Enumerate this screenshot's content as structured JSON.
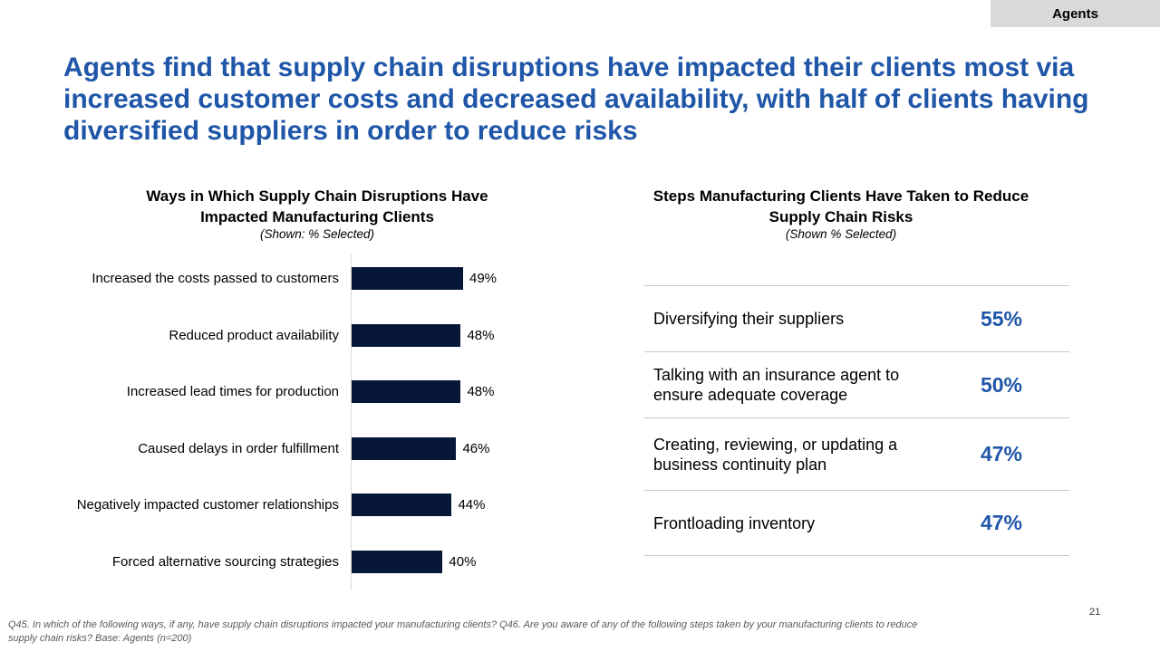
{
  "tag": "Agents",
  "title": "Agents find that supply chain disruptions have impacted their clients most via increased customer costs and decreased availability, with half of clients having diversified suppliers in order to reduce risks",
  "chart_data": {
    "type": "bar",
    "title": "Ways in Which Supply Chain Disruptions Have Impacted Manufacturing Clients",
    "subtitle": "(Shown: % Selected)",
    "categories": [
      "Increased the costs passed to customers",
      "Reduced product availability",
      "Increased lead times for production",
      "Caused delays in order fulfillment",
      "Negatively impacted customer relationships",
      "Forced alternative sourcing strategies"
    ],
    "values": [
      49,
      48,
      48,
      46,
      44,
      40
    ],
    "value_labels": [
      "49%",
      "48%",
      "48%",
      "46%",
      "44%",
      "40%"
    ],
    "orientation": "horizontal",
    "xlim": [
      0,
      100
    ],
    "grid": false,
    "bar_color": "#061737"
  },
  "table": {
    "title": "Steps Manufacturing Clients Have Taken to Reduce Supply Chain Risks",
    "subtitle": "(Shown % Selected)",
    "rows": [
      {
        "label": "Diversifying their suppliers",
        "value": "55%"
      },
      {
        "label": "Talking with an insurance agent to ensure adequate coverage",
        "value": "50%"
      },
      {
        "label": "Creating, reviewing, or updating a business continuity plan",
        "value": "47%"
      },
      {
        "label": "Frontloading inventory",
        "value": "47%"
      }
    ]
  },
  "footnote": "Q45. In which of the following ways, if any, have supply chain disruptions impacted your manufacturing clients? Q46. Are you aware of any of the following steps taken by your manufacturing clients to reduce supply chain risks? Base: Agents (n=200)",
  "page_number": "21"
}
